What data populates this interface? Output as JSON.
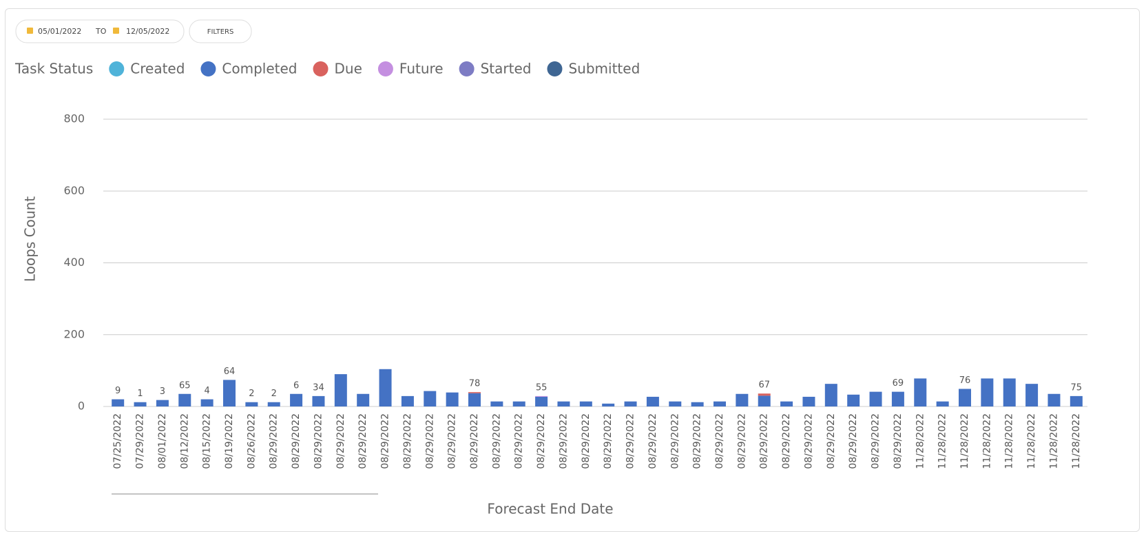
{
  "header": {
    "date_from": "05/01/2022",
    "date_separator": "TO",
    "date_to": "12/05/2022",
    "filters_button": "FILTERS"
  },
  "chart_data": {
    "type": "stacked_bar",
    "legend_title": "Task Status",
    "x_label": "Forecast End Date",
    "y_label": "Loops Count",
    "categories": [
      "07/25/2022",
      "07/29/2022",
      "08/01/2022",
      "08/12/2022",
      "08/15/2022",
      "08/19/2022",
      "08/26/2022",
      "08/29/2022",
      "08/29/2022",
      "08/29/2022",
      "08/29/2022",
      "08/29/2022",
      "08/29/2022",
      "08/29/2022",
      "08/29/2022",
      "08/29/2022",
      "08/29/2022",
      "08/29/2022",
      "08/29/2022",
      "08/29/2022",
      "08/29/2022",
      "08/29/2022",
      "08/29/2022",
      "08/29/2022",
      "08/29/2022",
      "08/29/2022",
      "08/29/2022",
      "08/29/2022",
      "08/29/2022",
      "08/29/2022",
      "08/29/2022",
      "08/29/2022",
      "08/29/2022",
      "08/29/2022",
      "08/29/2022",
      "08/29/2022",
      "11/28/2022",
      "11/28/2022",
      "11/28/2022",
      "11/28/2022",
      "11/28/2022",
      "11/28/2022",
      "11/28/2022",
      "11/28/2022"
    ],
    "series": [
      {
        "name": "Created",
        "color": "#4fb3d9",
        "values": [
          0,
          0,
          0,
          0,
          0,
          0,
          0,
          0,
          0,
          0,
          0,
          0,
          0,
          0,
          0,
          0,
          0,
          0,
          0,
          0,
          0,
          0,
          0,
          0,
          0,
          0,
          0,
          0,
          0,
          0,
          0,
          0,
          0,
          0,
          0,
          0,
          0,
          0,
          0,
          0,
          0,
          0,
          0,
          0
        ]
      },
      {
        "name": "Completed",
        "color": "#4472c4",
        "values": [
          20,
          12,
          18,
          35,
          20,
          74,
          12,
          12,
          35,
          29,
          90,
          35,
          104,
          29,
          43,
          39,
          37,
          14,
          14,
          27,
          14,
          14,
          8,
          14,
          27,
          14,
          12,
          14,
          35,
          30,
          14,
          27,
          63,
          33,
          41,
          41,
          78,
          14,
          49,
          78,
          78,
          63,
          35,
          29
        ]
      },
      {
        "name": "Due",
        "color": "#d9625e",
        "values": [
          0,
          0,
          0,
          0,
          0,
          0,
          0,
          0,
          0,
          0,
          0,
          0,
          0,
          0,
          0,
          0,
          3,
          0,
          0,
          0,
          0,
          0,
          0,
          0,
          0,
          0,
          0,
          0,
          0,
          6,
          0,
          0,
          0,
          0,
          0,
          0,
          0,
          0,
          0,
          0,
          0,
          0,
          0,
          0
        ]
      },
      {
        "name": "Future",
        "color": "#c48fe0",
        "values": [
          0,
          0,
          0,
          0,
          0,
          0,
          0,
          0,
          0,
          0,
          0,
          0,
          0,
          0,
          0,
          0,
          0,
          0,
          0,
          2,
          0,
          0,
          0,
          0,
          0,
          0,
          0,
          0,
          0,
          0,
          0,
          0,
          0,
          0,
          0,
          0,
          0,
          0,
          0,
          0,
          0,
          0,
          0,
          0
        ]
      },
      {
        "name": "Started",
        "color": "#7d7cc4",
        "values": [
          0,
          0,
          0,
          0,
          0,
          0,
          0,
          0,
          0,
          0,
          0,
          0,
          0,
          0,
          0,
          0,
          0,
          0,
          0,
          0,
          0,
          0,
          0,
          0,
          0,
          0,
          0,
          0,
          0,
          0,
          0,
          0,
          0,
          0,
          0,
          0,
          0,
          0,
          0,
          0,
          0,
          0,
          0,
          0
        ]
      },
      {
        "name": "Submitted",
        "color": "#3f6693",
        "values": [
          0,
          0,
          0,
          0,
          0,
          0,
          0,
          0,
          0,
          0,
          0,
          0,
          0,
          0,
          0,
          0,
          0,
          0,
          0,
          0,
          0,
          0,
          0,
          0,
          0,
          0,
          0,
          0,
          0,
          0,
          0,
          0,
          0,
          0,
          0,
          0,
          0,
          0,
          0,
          0,
          0,
          0,
          0,
          0
        ]
      }
    ],
    "bar_labels": [
      "9",
      "1",
      "3",
      "65",
      "4",
      "64",
      "2",
      "2",
      "6",
      "34",
      null,
      null,
      null,
      null,
      null,
      null,
      "78",
      null,
      null,
      "55",
      null,
      null,
      null,
      null,
      null,
      null,
      null,
      null,
      null,
      "67",
      null,
      null,
      null,
      null,
      null,
      "69",
      null,
      null,
      "76",
      null,
      null,
      null,
      null,
      "75"
    ],
    "ylim": [
      0,
      800
    ],
    "yticks": [
      0,
      200,
      400,
      600,
      800
    ],
    "grid": true,
    "legend_position": "top-left"
  }
}
